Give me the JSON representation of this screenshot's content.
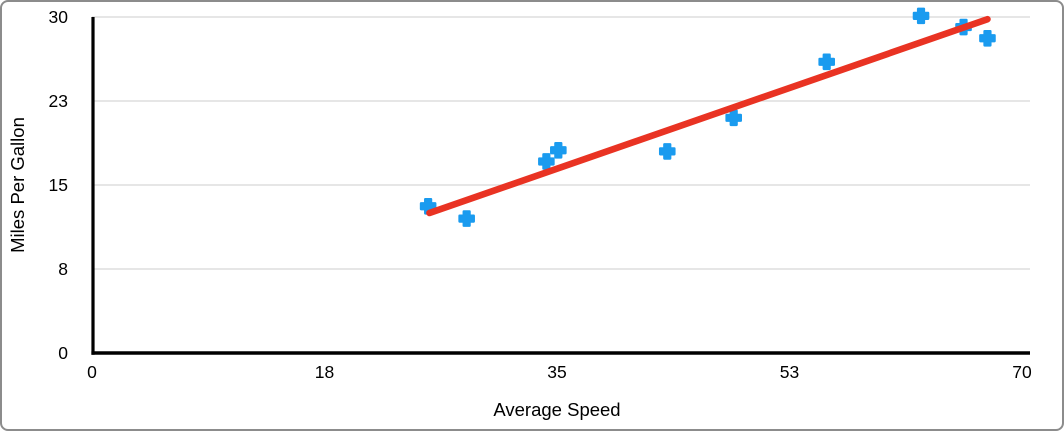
{
  "frame": {
    "background": "#ffffff",
    "border_color": "#8c8c8c"
  },
  "chart_data": {
    "type": "scatter",
    "title": "",
    "xlabel": "Average Speed",
    "ylabel": "Miles Per Gallon",
    "xlim": [
      0,
      70
    ],
    "ylim": [
      0,
      30
    ],
    "x_ticks": {
      "values": [
        0,
        17.5,
        35,
        52.5,
        70
      ],
      "labels": [
        "0",
        "18",
        "35",
        "53",
        "70"
      ]
    },
    "y_ticks": {
      "values": [
        0,
        7.5,
        15,
        22.5,
        30
      ],
      "labels": [
        "0",
        "8",
        "15",
        "23",
        "30"
      ]
    },
    "grid": "horizontal-only",
    "legend": "none",
    "series": [
      {
        "name": "Miles Per Gallon",
        "marker": "plus",
        "color": "#1a9bef",
        "points": [
          {
            "x": 25.3,
            "y": 13.1
          },
          {
            "x": 28.2,
            "y": 12.0
          },
          {
            "x": 34.2,
            "y": 17.1
          },
          {
            "x": 35.1,
            "y": 18.1
          },
          {
            "x": 43.3,
            "y": 18.0
          },
          {
            "x": 48.3,
            "y": 21.0
          },
          {
            "x": 55.3,
            "y": 26.0
          },
          {
            "x": 62.4,
            "y": 30.1
          },
          {
            "x": 65.6,
            "y": 29.1
          },
          {
            "x": 67.4,
            "y": 28.1
          }
        ]
      }
    ],
    "trendline": {
      "color": "#e93323",
      "x1": 25.4,
      "y1": 12.5,
      "x2": 67.4,
      "y2": 29.8
    },
    "colors": {
      "axis": "#000000",
      "gridline": "#d8d8d8",
      "text": "#000000"
    }
  }
}
